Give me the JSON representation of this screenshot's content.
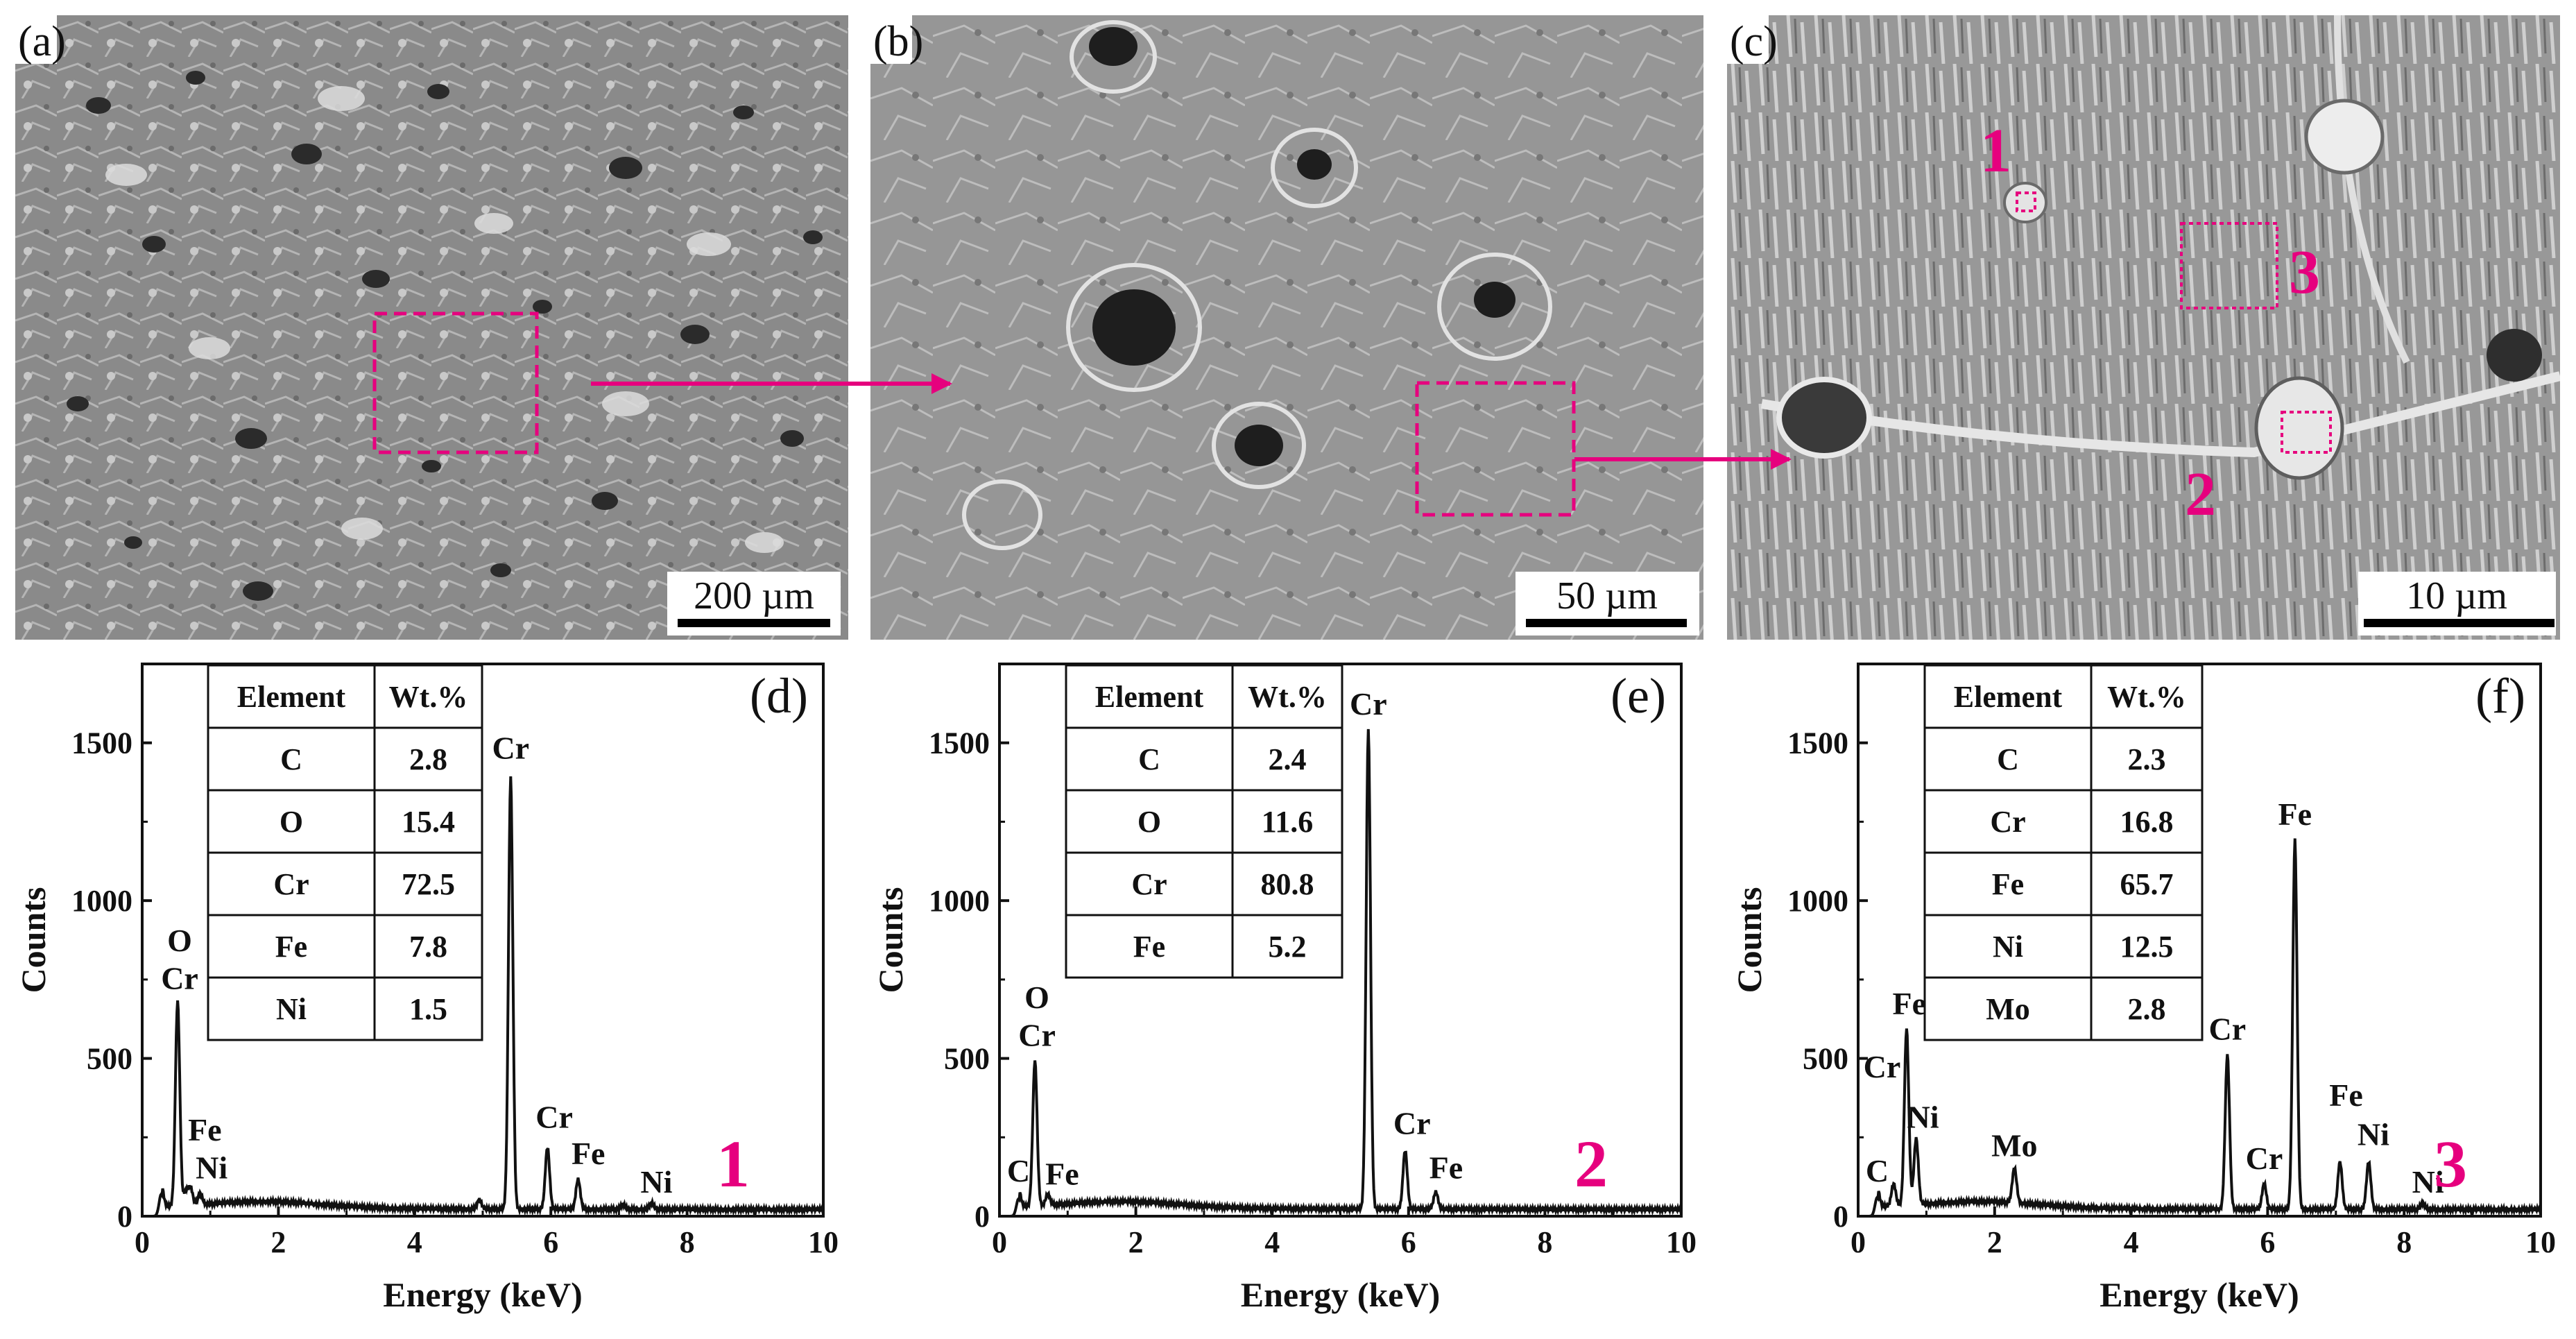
{
  "colors": {
    "accent": "#e6007e",
    "line": "#111111"
  },
  "sem_panels": [
    {
      "label": "(a)",
      "scale": "200 µm"
    },
    {
      "label": "(b)",
      "scale": "50 µm"
    },
    {
      "label": "(c)",
      "scale": "10 µm"
    }
  ],
  "sem_markers": [
    "1",
    "2",
    "3"
  ],
  "chart_data": [
    {
      "type": "line",
      "panel_label": "(d)",
      "spot": "1",
      "xlabel": "Energy (keV)",
      "ylabel": "Counts",
      "xlim": [
        0,
        10
      ],
      "ylim": [
        0,
        1750
      ],
      "xticks": [
        0,
        2,
        4,
        6,
        8,
        10
      ],
      "yticks": [
        0,
        500,
        1000,
        1500
      ],
      "table": {
        "headers": [
          "Element",
          "Wt.%"
        ],
        "rows": [
          [
            "C",
            "2.8"
          ],
          [
            "O",
            "15.4"
          ],
          [
            "Cr",
            "72.5"
          ],
          [
            "Fe",
            "7.8"
          ],
          [
            "Ni",
            "1.5"
          ]
        ]
      },
      "peaks": [
        [
          0.28,
          70
        ],
        [
          0.52,
          650
        ],
        [
          0.64,
          45
        ],
        [
          0.71,
          55
        ],
        [
          0.85,
          35
        ],
        [
          4.95,
          30
        ],
        [
          5.41,
          1370
        ],
        [
          5.95,
          195
        ],
        [
          6.4,
          95
        ],
        [
          7.06,
          15
        ],
        [
          7.48,
          20
        ]
      ],
      "labels": [
        {
          "text": "O",
          "x": 0.55,
          "y": 840
        },
        {
          "text": "Cr",
          "x": 0.55,
          "y": 720
        },
        {
          "text": "Fe",
          "x": 0.92,
          "y": 240
        },
        {
          "text": "Ni",
          "x": 1.02,
          "y": 120
        },
        {
          "text": "Cr",
          "x": 5.41,
          "y": 1450
        },
        {
          "text": "Cr",
          "x": 6.05,
          "y": 280
        },
        {
          "text": "Fe",
          "x": 6.55,
          "y": 165
        },
        {
          "text": "Ni",
          "x": 7.55,
          "y": 75
        }
      ]
    },
    {
      "type": "line",
      "panel_label": "(e)",
      "spot": "2",
      "xlabel": "Energy (keV)",
      "ylabel": "Counts",
      "xlim": [
        0,
        10
      ],
      "ylim": [
        0,
        1750
      ],
      "xticks": [
        0,
        2,
        4,
        6,
        8,
        10
      ],
      "yticks": [
        0,
        500,
        1000,
        1500
      ],
      "table": {
        "headers": [
          "Element",
          "Wt.%"
        ],
        "rows": [
          [
            "C",
            "2.4"
          ],
          [
            "O",
            "11.6"
          ],
          [
            "Cr",
            "80.8"
          ],
          [
            "Fe",
            "5.2"
          ]
        ]
      },
      "peaks": [
        [
          0.28,
          55
        ],
        [
          0.52,
          460
        ],
        [
          0.71,
          35
        ],
        [
          5.41,
          1520
        ],
        [
          5.95,
          185
        ],
        [
          6.4,
          55
        ]
      ],
      "labels": [
        {
          "text": "O",
          "x": 0.55,
          "y": 660
        },
        {
          "text": "Cr",
          "x": 0.55,
          "y": 540
        },
        {
          "text": "C",
          "x": 0.28,
          "y": 110
        },
        {
          "text": "Fe",
          "x": 0.92,
          "y": 100
        },
        {
          "text": "Cr",
          "x": 5.41,
          "y": 1590
        },
        {
          "text": "Cr",
          "x": 6.05,
          "y": 260
        },
        {
          "text": "Fe",
          "x": 6.55,
          "y": 120
        }
      ]
    },
    {
      "type": "line",
      "panel_label": "(f)",
      "spot": "3",
      "xlabel": "Energy (keV)",
      "ylabel": "Counts",
      "xlim": [
        0,
        10
      ],
      "ylim": [
        0,
        1750
      ],
      "xticks": [
        0,
        2,
        4,
        6,
        8,
        10
      ],
      "yticks": [
        0,
        500,
        1000,
        1500
      ],
      "table": {
        "headers": [
          "Element",
          "Wt.%"
        ],
        "rows": [
          [
            "C",
            "2.3"
          ],
          [
            "Cr",
            "16.8"
          ],
          [
            "Fe",
            "65.7"
          ],
          [
            "Ni",
            "12.5"
          ],
          [
            "Mo",
            "2.8"
          ]
        ]
      },
      "peaks": [
        [
          0.28,
          60
        ],
        [
          0.52,
          70
        ],
        [
          0.71,
          560
        ],
        [
          0.85,
          210
        ],
        [
          2.29,
          110
        ],
        [
          5.41,
          490
        ],
        [
          5.95,
          80
        ],
        [
          6.4,
          1170
        ],
        [
          7.06,
          150
        ],
        [
          7.48,
          150
        ],
        [
          8.27,
          20
        ]
      ],
      "labels": [
        {
          "text": "Fe",
          "x": 0.75,
          "y": 640
        },
        {
          "text": "Cr",
          "x": 0.35,
          "y": 440
        },
        {
          "text": "Ni",
          "x": 0.95,
          "y": 280
        },
        {
          "text": "C",
          "x": 0.28,
          "y": 110
        },
        {
          "text": "Mo",
          "x": 2.29,
          "y": 190
        },
        {
          "text": "Cr",
          "x": 5.41,
          "y": 560
        },
        {
          "text": "Cr",
          "x": 5.95,
          "y": 150
        },
        {
          "text": "Fe",
          "x": 6.4,
          "y": 1240
        },
        {
          "text": "Fe",
          "x": 7.15,
          "y": 350
        },
        {
          "text": "Ni",
          "x": 7.55,
          "y": 225
        },
        {
          "text": "Ni",
          "x": 8.35,
          "y": 75
        }
      ]
    }
  ]
}
